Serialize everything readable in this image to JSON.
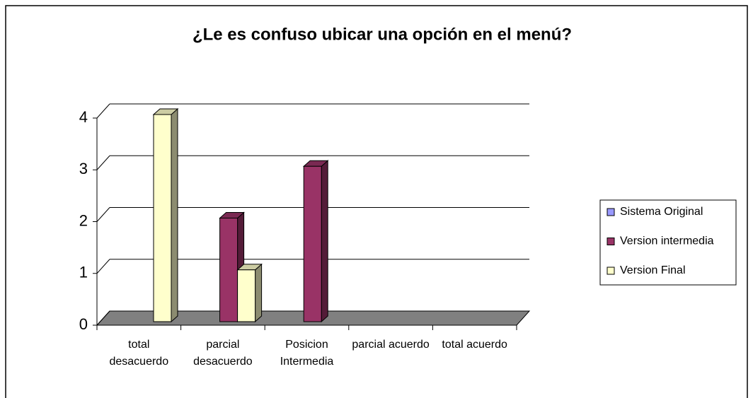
{
  "chart_data": {
    "type": "bar3d",
    "title": "¿Le es confuso ubicar una opción en el menú?",
    "categories": [
      "total desacuerdo",
      "parcial desacuerdo",
      "Posicion Intermedia",
      "parcial acuerdo",
      "total acuerdo"
    ],
    "series": [
      {
        "name": "Sistema Original",
        "color": "#9999ff",
        "values": [
          0,
          0,
          0,
          0,
          0
        ]
      },
      {
        "name": "Version intermedia",
        "color": "#993366",
        "values": [
          0,
          2,
          3,
          0,
          0
        ]
      },
      {
        "name": "Version Final",
        "color": "#ffffcc",
        "values": [
          4,
          1,
          0,
          0,
          0
        ]
      }
    ],
    "ylim": [
      0,
      4
    ],
    "yticks": [
      0,
      1,
      2,
      3,
      4
    ],
    "grid": true,
    "legend": "right"
  }
}
